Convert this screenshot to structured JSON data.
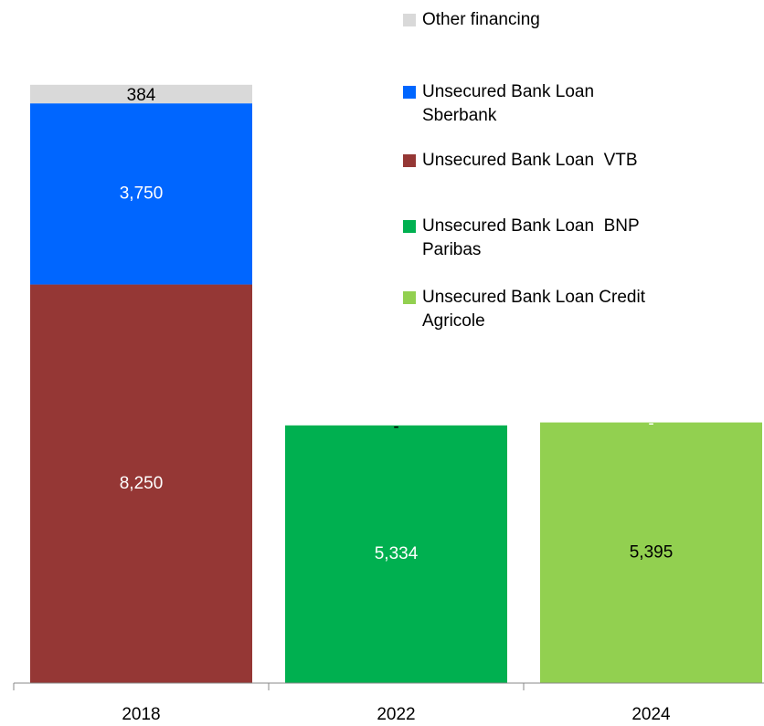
{
  "chart_data": {
    "type": "stacked_bar",
    "categories": [
      "2018",
      "2022",
      "2024"
    ],
    "series": [
      {
        "name": "Other financing",
        "color": "#d9d9d9",
        "values": [
          384,
          0,
          0
        ],
        "value_labels": [
          "384",
          "-",
          "-"
        ]
      },
      {
        "name": "Unsecured Bank Loan Sberbank",
        "color": "#0066ff",
        "values": [
          3750,
          null,
          null
        ]
      },
      {
        "name": "Unsecured Bank Loan  VTB",
        "color": "#953735",
        "values": [
          8250,
          null,
          null
        ]
      },
      {
        "name": "Unsecured Bank Loan  BNP Paribas",
        "color": "#00b050",
        "values": [
          null,
          5334,
          null
        ]
      },
      {
        "name": "Unsecured Bank Loan Credit Agricole",
        "color": "#92d050",
        "values": [
          null,
          null,
          5395
        ]
      }
    ],
    "ylim": [
      0,
      12400
    ],
    "legend": "top-right"
  }
}
